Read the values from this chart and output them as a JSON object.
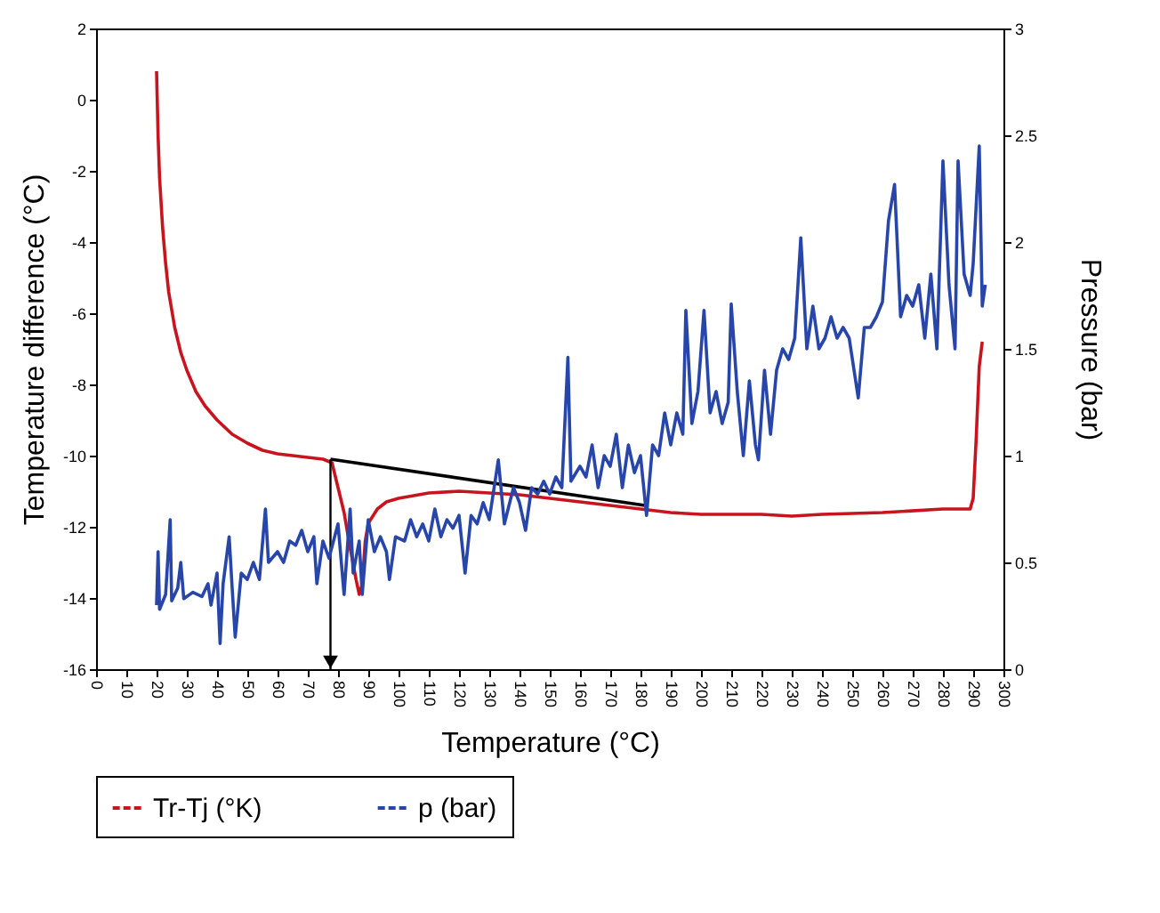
{
  "chart_data": {
    "type": "line",
    "xlabel": "Temperature (°C)",
    "ylabel": "Temperature difference (°C)",
    "y2label": "Pressure (bar)",
    "xlim": [
      0,
      300
    ],
    "xticks": [
      0,
      10,
      20,
      30,
      40,
      50,
      60,
      70,
      80,
      90,
      100,
      110,
      120,
      130,
      140,
      150,
      160,
      170,
      180,
      190,
      200,
      210,
      220,
      230,
      240,
      250,
      260,
      270,
      280,
      290,
      300
    ],
    "ylim": [
      -16,
      2
    ],
    "yticks": [
      -16,
      -14,
      -12,
      -10,
      -8,
      -6,
      -4,
      -2,
      0,
      2
    ],
    "y2lim": [
      0,
      3
    ],
    "y2ticks": [
      0,
      0.5,
      1,
      1.5,
      2,
      2.5,
      3
    ],
    "grid": false,
    "legend": "bottom",
    "series": [
      {
        "name": "Tr-Tj (°K)",
        "color": "#c8141e",
        "x": [
          20,
          20.5,
          21,
          22,
          23,
          24,
          26,
          28,
          30,
          33,
          36,
          40,
          45,
          50,
          55,
          60,
          65,
          70,
          75,
          78,
          80,
          82,
          84,
          86,
          87,
          88,
          89,
          90,
          93,
          96,
          100,
          110,
          120,
          130,
          140,
          150,
          160,
          170,
          180,
          190,
          200,
          220,
          230,
          240,
          260,
          280,
          289,
          290,
          291,
          292,
          293
        ],
        "values": [
          0.8,
          -1,
          -2.2,
          -3.6,
          -4.6,
          -5.4,
          -6.4,
          -7.1,
          -7.6,
          -8.2,
          -8.6,
          -9.0,
          -9.4,
          -9.65,
          -9.85,
          -9.95,
          -10.0,
          -10.05,
          -10.1,
          -10.2,
          -10.9,
          -11.6,
          -12.6,
          -13.5,
          -13.9,
          -13.6,
          -12.4,
          -11.9,
          -11.5,
          -11.3,
          -11.2,
          -11.05,
          -11.0,
          -11.05,
          -11.1,
          -11.2,
          -11.3,
          -11.4,
          -11.5,
          -11.6,
          -11.65,
          -11.65,
          -11.7,
          -11.65,
          -11.6,
          -11.5,
          -11.5,
          -11.2,
          -9.5,
          -7.5,
          -6.8
        ]
      },
      {
        "name": "p (bar)",
        "color": "#2846aa",
        "axis": "y2",
        "x": [
          20,
          20.5,
          21,
          23,
          24.5,
          25,
          27,
          28,
          29,
          32,
          35,
          37,
          38,
          40,
          41,
          42,
          44,
          45,
          46,
          48,
          50,
          52,
          54,
          56,
          57,
          60,
          62,
          64,
          66,
          68,
          70,
          72,
          73,
          75,
          77,
          80,
          82,
          84,
          85,
          87,
          88,
          90,
          92,
          94,
          96,
          97,
          99,
          102,
          104,
          106,
          108,
          110,
          112,
          114,
          116,
          118,
          120,
          122,
          124,
          126,
          128,
          130,
          133,
          135,
          138,
          140,
          142,
          144,
          146,
          148,
          150,
          152,
          154,
          156,
          157,
          160,
          162,
          164,
          166,
          168,
          170,
          172,
          174,
          176,
          178,
          180,
          182,
          184,
          186,
          188,
          190,
          192,
          194,
          195,
          197,
          199,
          201,
          203,
          205,
          207,
          209,
          210,
          212,
          214,
          216,
          218,
          219,
          221,
          223,
          225,
          227,
          229,
          231,
          233,
          235,
          237,
          239,
          241,
          243,
          245,
          247,
          249,
          252,
          254,
          256,
          258,
          260,
          262,
          264,
          266,
          268,
          270,
          272,
          274,
          276,
          278,
          280,
          282,
          284,
          285,
          287,
          289,
          290,
          292,
          293,
          294
        ],
        "values": [
          0.3,
          0.55,
          0.28,
          0.35,
          0.7,
          0.32,
          0.38,
          0.5,
          0.33,
          0.36,
          0.34,
          0.4,
          0.3,
          0.45,
          0.12,
          0.4,
          0.62,
          0.38,
          0.15,
          0.45,
          0.42,
          0.5,
          0.42,
          0.75,
          0.5,
          0.55,
          0.5,
          0.6,
          0.58,
          0.65,
          0.55,
          0.62,
          0.4,
          0.6,
          0.52,
          0.68,
          0.35,
          0.75,
          0.45,
          0.6,
          0.35,
          0.7,
          0.55,
          0.62,
          0.55,
          0.42,
          0.62,
          0.6,
          0.7,
          0.62,
          0.68,
          0.6,
          0.75,
          0.62,
          0.7,
          0.66,
          0.72,
          0.45,
          0.72,
          0.68,
          0.78,
          0.7,
          0.98,
          0.68,
          0.85,
          0.78,
          0.65,
          0.85,
          0.82,
          0.88,
          0.82,
          0.9,
          0.85,
          1.46,
          0.88,
          0.95,
          0.9,
          1.05,
          0.85,
          1.0,
          0.95,
          1.1,
          0.85,
          1.05,
          0.92,
          1.0,
          0.72,
          1.05,
          1.0,
          1.2,
          1.05,
          1.2,
          1.1,
          1.68,
          1.15,
          1.3,
          1.68,
          1.2,
          1.3,
          1.15,
          1.25,
          1.71,
          1.3,
          1.0,
          1.35,
          1.05,
          0.98,
          1.4,
          1.1,
          1.4,
          1.5,
          1.45,
          1.55,
          2.02,
          1.5,
          1.7,
          1.5,
          1.55,
          1.65,
          1.55,
          1.6,
          1.55,
          1.27,
          1.6,
          1.6,
          1.65,
          1.72,
          2.1,
          2.27,
          1.65,
          1.75,
          1.7,
          1.8,
          1.55,
          1.85,
          1.5,
          2.38,
          1.8,
          1.5,
          2.38,
          1.85,
          1.75,
          1.9,
          2.45,
          1.7,
          1.8
        ]
      },
      {
        "type": "line",
        "color": "#000000",
        "x": [
          77.5,
          181.5
        ],
        "values": [
          -10.1,
          -11.4
        ]
      }
    ]
  }
}
